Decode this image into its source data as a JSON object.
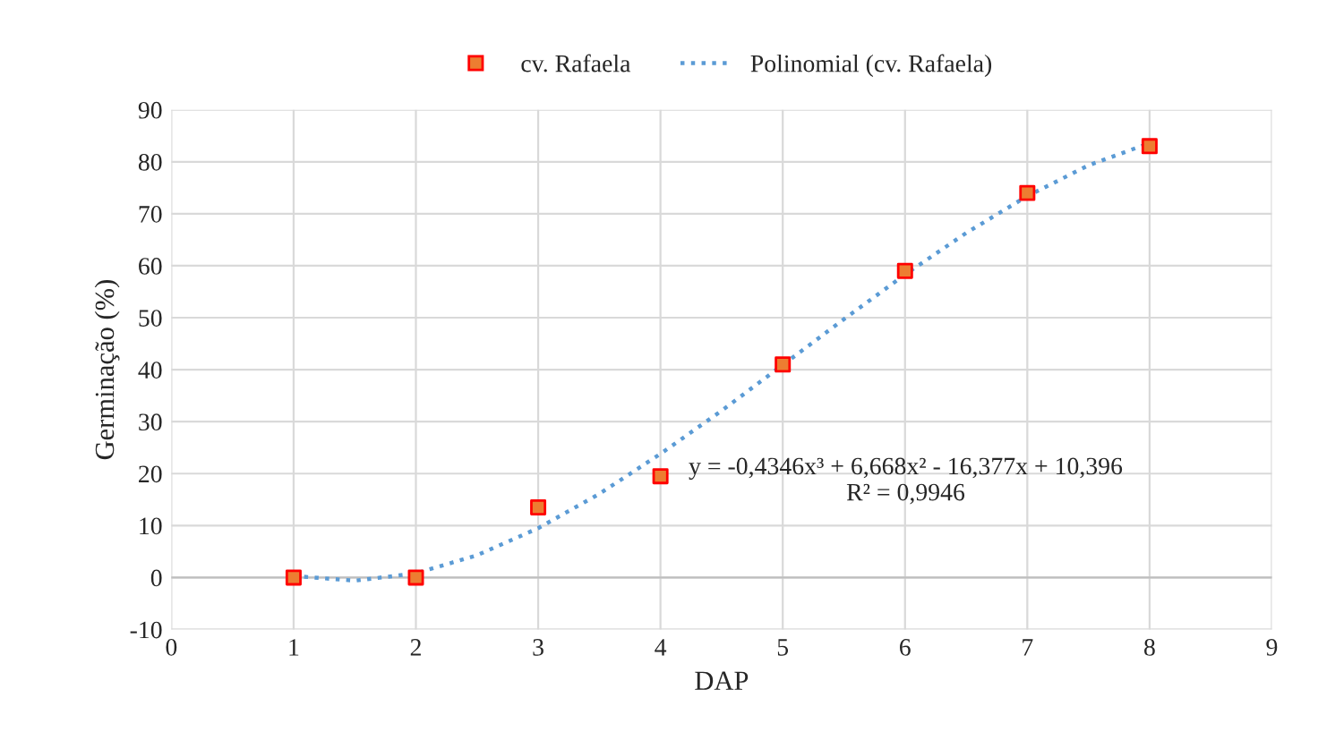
{
  "chart_data": {
    "type": "scatter",
    "xlabel": "DAP",
    "ylabel": "Germinação (%)",
    "xlim": [
      0,
      9
    ],
    "xticks": [
      0,
      1,
      2,
      3,
      4,
      5,
      6,
      7,
      8,
      9
    ],
    "ylim": [
      -10,
      90
    ],
    "yticks": [
      -10,
      0,
      10,
      20,
      30,
      40,
      50,
      60,
      70,
      80,
      90
    ],
    "grid": true,
    "legend": "top",
    "series": [
      {
        "name": "cv. Rafaela",
        "marker": "square",
        "color": "#ed7d31",
        "x": [
          1,
          2,
          3,
          4,
          5,
          6,
          7,
          8
        ],
        "values": [
          0,
          0,
          13.5,
          19.5,
          41,
          59,
          74,
          83
        ]
      },
      {
        "name": "Polinomial (cv. Rafaela)",
        "type": "line",
        "marker": "none",
        "color": "#5b9bd5",
        "line_style": "dotted",
        "x": [
          1,
          1.5,
          2,
          2.5,
          3,
          3.5,
          4,
          4.5,
          5,
          5.5,
          6,
          6.5,
          7,
          7.5,
          8
        ],
        "values": [
          0.3,
          -0.6,
          0.8,
          4.3,
          9.5,
          16.1,
          23.8,
          32.1,
          40.9,
          49.7,
          58.3,
          66.3,
          73.4,
          79.3,
          83.6
        ]
      }
    ],
    "annotations": [
      "y = -0,4346x³ + 6,668x² - 16,377x + 10,396\nR² = 0,9946"
    ]
  }
}
